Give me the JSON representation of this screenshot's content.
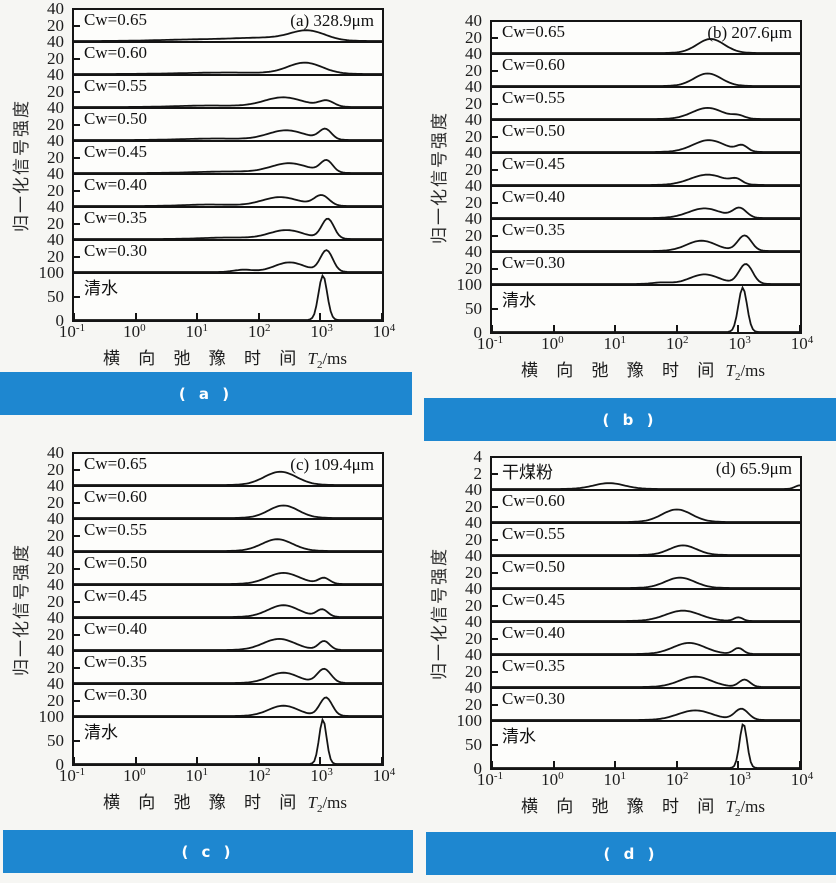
{
  "ui": {
    "banner_color": "#1e87d0",
    "axis_color": "#141414",
    "banners": [
      {
        "label": "( a )"
      },
      {
        "label": "( b )"
      },
      {
        "label": "( c )"
      },
      {
        "label": "( d )"
      }
    ]
  },
  "figure": {
    "ylabel": "归一化信号强度",
    "x_axis": {
      "label_cn": "横 向 弛 豫 时 间",
      "unit_main": "T",
      "unit_sub": "2",
      "unit_rest": "/ms"
    }
  },
  "chart_data": [
    {
      "type": "line",
      "panel": "a",
      "title": "(a) 328.9μm",
      "grain_size_um": 328.9,
      "xlabel": "横向弛豫时间 T2/ms",
      "ylabel": "归一化信号强度",
      "xscale": "log",
      "xrange_log10": [
        -1,
        4
      ],
      "x_ticks": [
        {
          "base": "10",
          "exp": "-1"
        },
        {
          "base": "10",
          "exp": "0"
        },
        {
          "base": "10",
          "exp": "1"
        },
        {
          "base": "10",
          "exp": "2"
        },
        {
          "base": "10",
          "exp": "3"
        },
        {
          "base": "10",
          "exp": "4"
        }
      ],
      "series": [
        {
          "name": "Cw=0.65",
          "ymax": 40,
          "yticks": [
            "40",
            "20"
          ],
          "peaks": [
            [
              1.0,
              0.6,
              2
            ],
            [
              2.1,
              0.5,
              4
            ],
            [
              2.8,
              0.28,
              13
            ]
          ]
        },
        {
          "name": "Cw=0.60",
          "ymax": 40,
          "yticks": [
            "40",
            "20"
          ],
          "peaks": [
            [
              1.5,
              0.7,
              2
            ],
            [
              2.75,
              0.28,
              15
            ]
          ]
        },
        {
          "name": "Cw=0.55",
          "ymax": 40,
          "yticks": [
            "40",
            "20"
          ],
          "peaks": [
            [
              1.2,
              0.5,
              2
            ],
            [
              2.4,
              0.32,
              13
            ],
            [
              3.1,
              0.12,
              8
            ]
          ]
        },
        {
          "name": "Cw=0.50",
          "ymax": 40,
          "yticks": [
            "40",
            "20"
          ],
          "peaks": [
            [
              1.3,
              0.5,
              2
            ],
            [
              2.45,
              0.3,
              13
            ],
            [
              3.08,
              0.1,
              14
            ]
          ]
        },
        {
          "name": "Cw=0.45",
          "ymax": 40,
          "yticks": [
            "40",
            "20"
          ],
          "peaks": [
            [
              1.5,
              0.5,
              2
            ],
            [
              2.5,
              0.3,
              13
            ],
            [
              3.1,
              0.1,
              16
            ]
          ]
        },
        {
          "name": "Cw=0.40",
          "ymax": 40,
          "yticks": [
            "40",
            "20"
          ],
          "peaks": [
            [
              1.2,
              0.4,
              2
            ],
            [
              2.35,
              0.3,
              12
            ],
            [
              3.02,
              0.12,
              14
            ]
          ]
        },
        {
          "name": "Cw=0.35",
          "ymax": 40,
          "yticks": [
            "40",
            "20"
          ],
          "peaks": [
            [
              1.5,
              0.4,
              2
            ],
            [
              2.45,
              0.28,
              12
            ],
            [
              3.12,
              0.1,
              27
            ]
          ]
        },
        {
          "name": "Cw=0.30",
          "ymax": 40,
          "yticks": [
            "40",
            "20"
          ],
          "peaks": [
            [
              1.75,
              0.15,
              3
            ],
            [
              2.5,
              0.25,
              13
            ],
            [
              3.1,
              0.1,
              29
            ]
          ]
        },
        {
          "name": "清水",
          "ymax": 100,
          "yticks": [
            "100",
            "50",
            "0"
          ],
          "peaks": [
            [
              3.04,
              0.07,
              100
            ]
          ]
        }
      ]
    },
    {
      "type": "line",
      "panel": "b",
      "title": "(b) 207.6μm",
      "grain_size_um": 207.6,
      "xlabel": "横向弛豫时间 T2/ms",
      "ylabel": "归一化信号强度",
      "xscale": "log",
      "xrange_log10": [
        -1,
        4
      ],
      "x_ticks": [
        {
          "base": "10",
          "exp": "-1"
        },
        {
          "base": "10",
          "exp": "0"
        },
        {
          "base": "10",
          "exp": "1"
        },
        {
          "base": "10",
          "exp": "2"
        },
        {
          "base": "10",
          "exp": "3"
        },
        {
          "base": "10",
          "exp": "4"
        }
      ],
      "series": [
        {
          "name": "Cw=0.65",
          "ymax": 40,
          "yticks": [
            "40",
            "20"
          ],
          "peaks": [
            [
              2.55,
              0.22,
              19
            ]
          ]
        },
        {
          "name": "Cw=0.60",
          "ymax": 40,
          "yticks": [
            "40",
            "20"
          ],
          "peaks": [
            [
              2.5,
              0.22,
              17
            ]
          ]
        },
        {
          "name": "Cw=0.55",
          "ymax": 40,
          "yticks": [
            "40",
            "20"
          ],
          "peaks": [
            [
              2.5,
              0.25,
              15
            ],
            [
              3.0,
              0.1,
              4
            ]
          ]
        },
        {
          "name": "Cw=0.50",
          "ymax": 40,
          "yticks": [
            "40",
            "20"
          ],
          "peaks": [
            [
              2.52,
              0.26,
              16
            ],
            [
              3.06,
              0.09,
              8
            ]
          ]
        },
        {
          "name": "Cw=0.45",
          "ymax": 40,
          "yticks": [
            "40",
            "20"
          ],
          "peaks": [
            [
              2.5,
              0.28,
              14
            ],
            [
              2.97,
              0.09,
              6
            ]
          ]
        },
        {
          "name": "Cw=0.40",
          "ymax": 40,
          "yticks": [
            "40",
            "20"
          ],
          "peaks": [
            [
              2.45,
              0.26,
              13
            ],
            [
              3.02,
              0.11,
              13
            ]
          ]
        },
        {
          "name": "Cw=0.35",
          "ymax": 40,
          "yticks": [
            "40",
            "20"
          ],
          "peaks": [
            [
              2.4,
              0.24,
              14
            ],
            [
              3.1,
              0.11,
              21
            ]
          ]
        },
        {
          "name": "Cw=0.30",
          "ymax": 40,
          "yticks": [
            "40",
            "20"
          ],
          "peaks": [
            [
              1.75,
              0.15,
              2
            ],
            [
              2.45,
              0.24,
              13
            ],
            [
              3.12,
              0.11,
              27
            ]
          ]
        },
        {
          "name": "清水",
          "ymax": 100,
          "yticks": [
            "100",
            "50",
            "0"
          ],
          "peaks": [
            [
              3.07,
              0.07,
              100
            ]
          ]
        }
      ]
    },
    {
      "type": "line",
      "panel": "c",
      "title": "(c) 109.4μm",
      "grain_size_um": 109.4,
      "xlabel": "横向弛豫时间 T2/ms",
      "ylabel": "归一化信号强度",
      "xscale": "log",
      "xrange_log10": [
        -1,
        4
      ],
      "x_ticks": [
        {
          "base": "10",
          "exp": "-1"
        },
        {
          "base": "10",
          "exp": "0"
        },
        {
          "base": "10",
          "exp": "1"
        },
        {
          "base": "10",
          "exp": "2"
        },
        {
          "base": "10",
          "exp": "3"
        },
        {
          "base": "10",
          "exp": "4"
        }
      ],
      "series": [
        {
          "name": "Cw=0.65",
          "ymax": 40,
          "yticks": [
            "40",
            "20"
          ],
          "peaks": [
            [
              2.35,
              0.26,
              18
            ]
          ]
        },
        {
          "name": "Cw=0.60",
          "ymax": 40,
          "yticks": [
            "40",
            "20"
          ],
          "peaks": [
            [
              2.4,
              0.24,
              17
            ]
          ]
        },
        {
          "name": "Cw=0.55",
          "ymax": 40,
          "yticks": [
            "40",
            "20"
          ],
          "peaks": [
            [
              2.3,
              0.25,
              16
            ]
          ]
        },
        {
          "name": "Cw=0.50",
          "ymax": 40,
          "yticks": [
            "40",
            "20"
          ],
          "peaks": [
            [
              2.4,
              0.26,
              15
            ],
            [
              3.06,
              0.09,
              8
            ]
          ]
        },
        {
          "name": "Cw=0.45",
          "ymax": 40,
          "yticks": [
            "40",
            "20"
          ],
          "peaks": [
            [
              2.4,
              0.25,
              16
            ],
            [
              3.03,
              0.09,
              10
            ]
          ]
        },
        {
          "name": "Cw=0.40",
          "ymax": 40,
          "yticks": [
            "40",
            "20"
          ],
          "peaks": [
            [
              2.33,
              0.26,
              15
            ],
            [
              3.06,
              0.09,
              12
            ]
          ]
        },
        {
          "name": "Cw=0.35",
          "ymax": 40,
          "yticks": [
            "40",
            "20"
          ],
          "peaks": [
            [
              2.4,
              0.24,
              14
            ],
            [
              3.06,
              0.11,
              19
            ]
          ]
        },
        {
          "name": "Cw=0.30",
          "ymax": 40,
          "yticks": [
            "40",
            "20"
          ],
          "peaks": [
            [
              2.4,
              0.24,
              14
            ],
            [
              3.09,
              0.1,
              25
            ]
          ]
        },
        {
          "name": "清水",
          "ymax": 100,
          "yticks": [
            "100",
            "50",
            "0"
          ],
          "peaks": [
            [
              3.04,
              0.06,
              100
            ]
          ]
        }
      ]
    },
    {
      "type": "line",
      "panel": "d",
      "title": "(d) 65.9μm",
      "grain_size_um": 65.9,
      "xlabel": "横向弛豫时间 T2/ms",
      "ylabel": "归一化信号强度",
      "xscale": "log",
      "xrange_log10": [
        -1,
        4
      ],
      "x_ticks": [
        {
          "base": "10",
          "exp": "-1"
        },
        {
          "base": "10",
          "exp": "0"
        },
        {
          "base": "10",
          "exp": "1"
        },
        {
          "base": "10",
          "exp": "2"
        },
        {
          "base": "10",
          "exp": "3"
        },
        {
          "base": "10",
          "exp": "4"
        }
      ],
      "series": [
        {
          "name": "干煤粉",
          "ymax": 4,
          "yticks": [
            "4",
            "2"
          ],
          "peaks": [
            [
              0.9,
              0.25,
              0.8
            ],
            [
              4.0,
              0.08,
              0.5
            ]
          ]
        },
        {
          "name": "Cw=0.60",
          "ymax": 40,
          "yticks": [
            "40",
            "20"
          ],
          "peaks": [
            [
              2.0,
              0.24,
              17
            ]
          ]
        },
        {
          "name": "Cw=0.55",
          "ymax": 40,
          "yticks": [
            "40",
            "20"
          ],
          "peaks": [
            [
              2.1,
              0.22,
              13
            ]
          ]
        },
        {
          "name": "Cw=0.50",
          "ymax": 40,
          "yticks": [
            "40",
            "20"
          ],
          "peaks": [
            [
              2.05,
              0.24,
              14
            ]
          ]
        },
        {
          "name": "Cw=0.45",
          "ymax": 40,
          "yticks": [
            "40",
            "20"
          ],
          "peaks": [
            [
              2.1,
              0.28,
              14
            ],
            [
              3.0,
              0.07,
              5
            ]
          ]
        },
        {
          "name": "Cw=0.40",
          "ymax": 40,
          "yticks": [
            "40",
            "20"
          ],
          "peaks": [
            [
              2.2,
              0.26,
              15
            ],
            [
              3.0,
              0.08,
              8
            ]
          ]
        },
        {
          "name": "Cw=0.35",
          "ymax": 40,
          "yticks": [
            "40",
            "20"
          ],
          "peaks": [
            [
              2.3,
              0.26,
              14
            ],
            [
              3.1,
              0.09,
              10
            ]
          ]
        },
        {
          "name": "Cw=0.30",
          "ymax": 40,
          "yticks": [
            "40",
            "20"
          ],
          "peaks": [
            [
              2.3,
              0.28,
              13
            ],
            [
              3.05,
              0.11,
              15
            ]
          ]
        },
        {
          "name": "清水",
          "ymax": 100,
          "yticks": [
            "100",
            "50",
            "0"
          ],
          "peaks": [
            [
              3.08,
              0.06,
              100
            ]
          ]
        }
      ]
    }
  ]
}
